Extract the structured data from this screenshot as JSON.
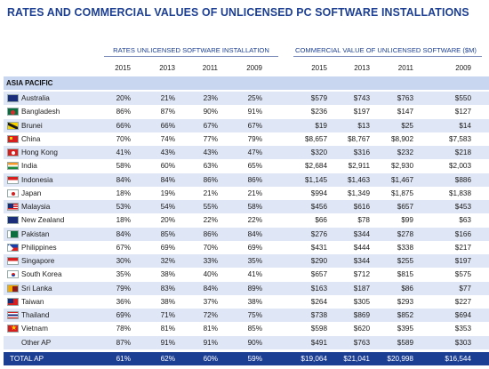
{
  "title": "RATES AND COMMERCIAL VALUES OF UNLICENSED PC SOFTWARE INSTALLATIONS",
  "group_headers": {
    "rates": "RATES UNLICENSED SOFTWARE INSTALLATION",
    "commercial": "COMMERCIAL VALUE OF UNLICENSED SOFTWARE ($M)"
  },
  "years": [
    "2015",
    "2013",
    "2011",
    "2009",
    "2015",
    "2013",
    "2011",
    "2009"
  ],
  "region": "ASIA PACIFIC",
  "rows": [
    {
      "flag": "au",
      "country": "Australia",
      "v": [
        "20%",
        "21%",
        "23%",
        "25%",
        "$579",
        "$743",
        "$763",
        "$550"
      ]
    },
    {
      "flag": "bd",
      "country": "Bangladesh",
      "v": [
        "86%",
        "87%",
        "90%",
        "91%",
        "$236",
        "$197",
        "$147",
        "$127"
      ]
    },
    {
      "flag": "bn",
      "country": "Brunei",
      "v": [
        "66%",
        "66%",
        "67%",
        "67%",
        "$19",
        "$13",
        "$25",
        "$14"
      ]
    },
    {
      "flag": "cn",
      "country": "China",
      "v": [
        "70%",
        "74%",
        "77%",
        "79%",
        "$8,657",
        "$8,767",
        "$8,902",
        "$7,583"
      ]
    },
    {
      "flag": "hk",
      "country": "Hong Kong",
      "v": [
        "41%",
        "43%",
        "43%",
        "47%",
        "$320",
        "$316",
        "$232",
        "$218"
      ]
    },
    {
      "flag": "in",
      "country": "India",
      "v": [
        "58%",
        "60%",
        "63%",
        "65%",
        "$2,684",
        "$2,911",
        "$2,930",
        "$2,003"
      ]
    },
    {
      "flag": "id",
      "country": "Indonesia",
      "v": [
        "84%",
        "84%",
        "86%",
        "86%",
        "$1,145",
        "$1,463",
        "$1,467",
        "$886"
      ]
    },
    {
      "flag": "jp",
      "country": "Japan",
      "v": [
        "18%",
        "19%",
        "21%",
        "21%",
        "$994",
        "$1,349",
        "$1,875",
        "$1,838"
      ]
    },
    {
      "flag": "my",
      "country": "Malaysia",
      "v": [
        "53%",
        "54%",
        "55%",
        "58%",
        "$456",
        "$616",
        "$657",
        "$453"
      ]
    },
    {
      "flag": "nz",
      "country": "New Zealand",
      "v": [
        "18%",
        "20%",
        "22%",
        "22%",
        "$66",
        "$78",
        "$99",
        "$63"
      ]
    },
    {
      "flag": "pk",
      "country": "Pakistan",
      "v": [
        "84%",
        "85%",
        "86%",
        "84%",
        "$276",
        "$344",
        "$278",
        "$166"
      ]
    },
    {
      "flag": "ph",
      "country": "Philippines",
      "v": [
        "67%",
        "69%",
        "70%",
        "69%",
        "$431",
        "$444",
        "$338",
        "$217"
      ]
    },
    {
      "flag": "sg",
      "country": "Singapore",
      "v": [
        "30%",
        "32%",
        "33%",
        "35%",
        "$290",
        "$344",
        "$255",
        "$197"
      ]
    },
    {
      "flag": "kr",
      "country": "South Korea",
      "v": [
        "35%",
        "38%",
        "40%",
        "41%",
        "$657",
        "$712",
        "$815",
        "$575"
      ]
    },
    {
      "flag": "lk",
      "country": "Sri Lanka",
      "v": [
        "79%",
        "83%",
        "84%",
        "89%",
        "$163",
        "$187",
        "$86",
        "$77"
      ]
    },
    {
      "flag": "tw",
      "country": "Taiwan",
      "v": [
        "36%",
        "38%",
        "37%",
        "38%",
        "$264",
        "$305",
        "$293",
        "$227"
      ]
    },
    {
      "flag": "th",
      "country": "Thailand",
      "v": [
        "69%",
        "71%",
        "72%",
        "75%",
        "$738",
        "$869",
        "$852",
        "$694"
      ]
    },
    {
      "flag": "vn",
      "country": "Vietnam",
      "v": [
        "78%",
        "81%",
        "81%",
        "85%",
        "$598",
        "$620",
        "$395",
        "$353"
      ]
    },
    {
      "flag": "none",
      "country": "Other AP",
      "v": [
        "87%",
        "91%",
        "91%",
        "90%",
        "$491",
        "$763",
        "$589",
        "$303"
      ]
    }
  ],
  "total": {
    "country": "TOTAL AP",
    "v": [
      "61%",
      "62%",
      "60%",
      "59%",
      "$19,064",
      "$21,041",
      "$20,998",
      "$16,544"
    ]
  },
  "colors": {
    "accent": "#1c3f93",
    "band": "#dfe6f5",
    "region_band": "#c9d6f0"
  }
}
